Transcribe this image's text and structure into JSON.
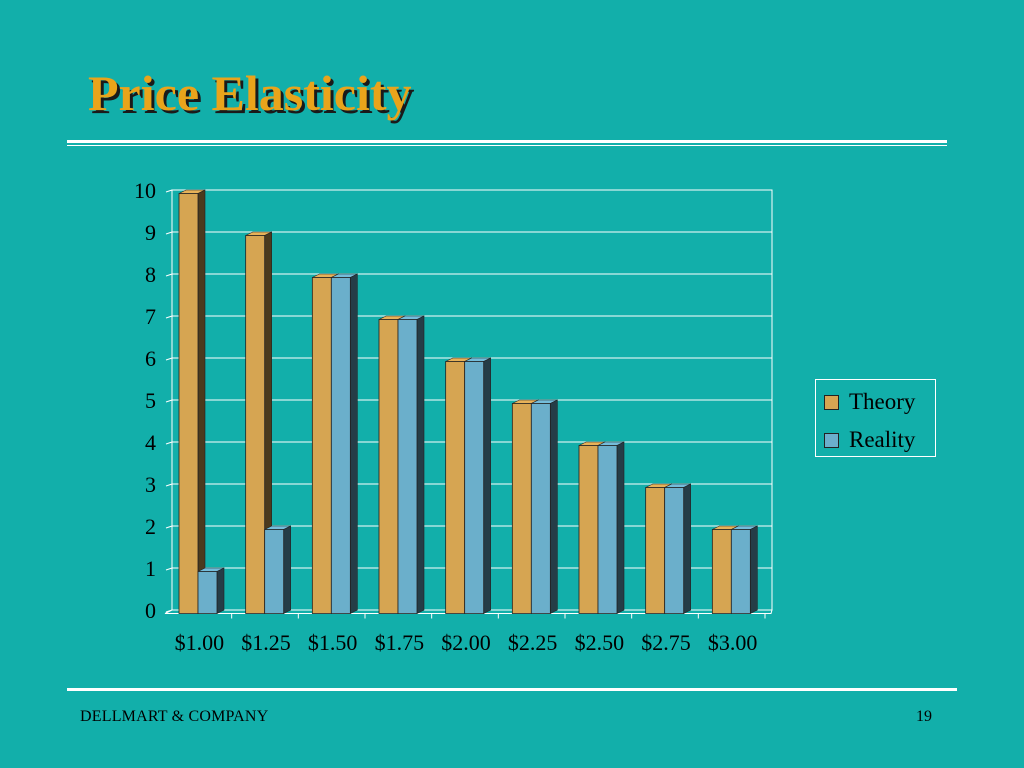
{
  "slide": {
    "title": "Price Elasticity",
    "footer_company": "DELLMART & COMPANY",
    "page_number": "19"
  },
  "colors": {
    "background": "#12AFAA",
    "title": "#E9A41B",
    "theory": "#D6A552",
    "reality": "#6BAFCB"
  },
  "chart_data": {
    "type": "bar",
    "categories": [
      "$1.00",
      "$1.25",
      "$1.50",
      "$1.75",
      "$2.00",
      "$2.25",
      "$2.50",
      "$2.75",
      "$3.00"
    ],
    "series": [
      {
        "name": "Theory",
        "values": [
          10,
          9,
          8,
          7,
          6,
          5,
          4,
          3,
          2
        ]
      },
      {
        "name": "Reality",
        "values": [
          1,
          2,
          8,
          7,
          6,
          5,
          4,
          3,
          2
        ]
      }
    ],
    "ylim": [
      0,
      10
    ],
    "yticks": [
      "0",
      "1",
      "2",
      "3",
      "4",
      "5",
      "6",
      "7",
      "8",
      "9",
      "10"
    ],
    "grid": true,
    "legend_position": "right",
    "style": "3d-bar"
  }
}
